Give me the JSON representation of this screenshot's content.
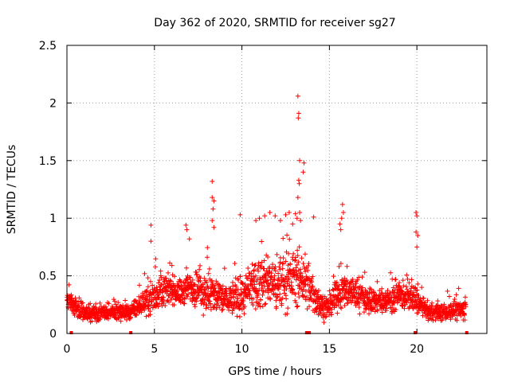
{
  "chart_data": {
    "type": "scatter",
    "title": "Day 362 of 2020, SRMTID for receiver sg27",
    "xlabel": "GPS time / hours",
    "ylabel": "SRMTID / TECUs",
    "xlim": [
      0,
      24
    ],
    "ylim": [
      0,
      2.5
    ],
    "x_ticks": [
      0,
      5,
      10,
      15,
      20
    ],
    "x_tick_labels": [
      "0",
      "5",
      "10",
      "15",
      "20"
    ],
    "y_ticks": [
      0,
      0.5,
      1,
      1.5,
      2,
      2.5
    ],
    "y_tick_labels": [
      "0",
      "0.5",
      "1",
      "1.5",
      "2",
      "2.5"
    ],
    "grid": true,
    "marker": "+",
    "series_color": "#ff0000",
    "series": [
      {
        "name": "SRMTID",
        "profile_hours": [
          0,
          0.5,
          1,
          1.5,
          2,
          2.5,
          3,
          3.5,
          4,
          4.5,
          5,
          5.5,
          6,
          6.5,
          7,
          7.5,
          8,
          8.5,
          9,
          9.5,
          10,
          10.5,
          11,
          11.5,
          12,
          12.5,
          13,
          13.5,
          14,
          14.5,
          15,
          15.5,
          16,
          16.5,
          17,
          17.5,
          18,
          18.5,
          19,
          19.5,
          20,
          20.5,
          21,
          21.5,
          22,
          22.5,
          23
        ],
        "profile_level": [
          0.3,
          0.22,
          0.17,
          0.17,
          0.18,
          0.18,
          0.18,
          0.18,
          0.22,
          0.28,
          0.32,
          0.38,
          0.38,
          0.35,
          0.4,
          0.38,
          0.36,
          0.33,
          0.3,
          0.3,
          0.32,
          0.38,
          0.42,
          0.45,
          0.42,
          0.45,
          0.5,
          0.45,
          0.35,
          0.25,
          0.22,
          0.35,
          0.38,
          0.35,
          0.3,
          0.28,
          0.28,
          0.3,
          0.32,
          0.32,
          0.28,
          0.2,
          0.18,
          0.18,
          0.2,
          0.2,
          0.22
        ],
        "profile_spread": [
          0.1,
          0.1,
          0.08,
          0.08,
          0.08,
          0.08,
          0.08,
          0.08,
          0.1,
          0.15,
          0.2,
          0.18,
          0.15,
          0.15,
          0.2,
          0.22,
          0.25,
          0.22,
          0.18,
          0.18,
          0.22,
          0.25,
          0.3,
          0.3,
          0.3,
          0.3,
          0.32,
          0.3,
          0.22,
          0.15,
          0.12,
          0.2,
          0.2,
          0.18,
          0.15,
          0.14,
          0.14,
          0.15,
          0.15,
          0.15,
          0.15,
          0.1,
          0.09,
          0.09,
          0.1,
          0.12,
          0.12
        ],
        "outliers": [
          {
            "x": 13.2,
            "y": 2.06
          },
          {
            "x": 13.25,
            "y": 1.91
          },
          {
            "x": 13.22,
            "y": 1.87
          },
          {
            "x": 13.3,
            "y": 1.5
          },
          {
            "x": 13.55,
            "y": 1.48
          },
          {
            "x": 13.5,
            "y": 1.4
          },
          {
            "x": 13.25,
            "y": 1.33
          },
          {
            "x": 13.28,
            "y": 1.3
          },
          {
            "x": 13.2,
            "y": 1.18
          },
          {
            "x": 13.3,
            "y": 1.05
          },
          {
            "x": 13.35,
            "y": 0.98
          },
          {
            "x": 13.15,
            "y": 1.0
          },
          {
            "x": 8.3,
            "y": 1.32
          },
          {
            "x": 8.3,
            "y": 1.18
          },
          {
            "x": 8.4,
            "y": 1.15
          },
          {
            "x": 8.35,
            "y": 1.08
          },
          {
            "x": 8.3,
            "y": 0.98
          },
          {
            "x": 8.4,
            "y": 0.92
          },
          {
            "x": 9.9,
            "y": 1.03
          },
          {
            "x": 10.8,
            "y": 0.98
          },
          {
            "x": 11.0,
            "y": 1.0
          },
          {
            "x": 11.3,
            "y": 1.02
          },
          {
            "x": 11.6,
            "y": 1.05
          },
          {
            "x": 11.9,
            "y": 1.02
          },
          {
            "x": 12.2,
            "y": 0.98
          },
          {
            "x": 12.5,
            "y": 1.03
          },
          {
            "x": 12.7,
            "y": 1.05
          },
          {
            "x": 12.9,
            "y": 0.95
          },
          {
            "x": 14.1,
            "y": 1.01
          },
          {
            "x": 15.75,
            "y": 1.12
          },
          {
            "x": 15.8,
            "y": 1.05
          },
          {
            "x": 15.7,
            "y": 1.0
          },
          {
            "x": 15.6,
            "y": 0.95
          },
          {
            "x": 15.65,
            "y": 0.9
          },
          {
            "x": 19.95,
            "y": 1.05
          },
          {
            "x": 20.0,
            "y": 1.02
          },
          {
            "x": 19.95,
            "y": 0.88
          },
          {
            "x": 20.05,
            "y": 0.85
          },
          {
            "x": 20.0,
            "y": 0.75
          },
          {
            "x": 4.8,
            "y": 0.94
          },
          {
            "x": 6.8,
            "y": 0.94
          },
          {
            "x": 6.85,
            "y": 0.9
          },
          {
            "x": 4.8,
            "y": 0.8
          },
          {
            "x": 7.0,
            "y": 0.82
          }
        ]
      }
    ],
    "data_gap_markers_x": [
      0.25,
      3.65,
      13.7,
      13.8,
      13.85,
      19.9,
      22.85
    ]
  }
}
